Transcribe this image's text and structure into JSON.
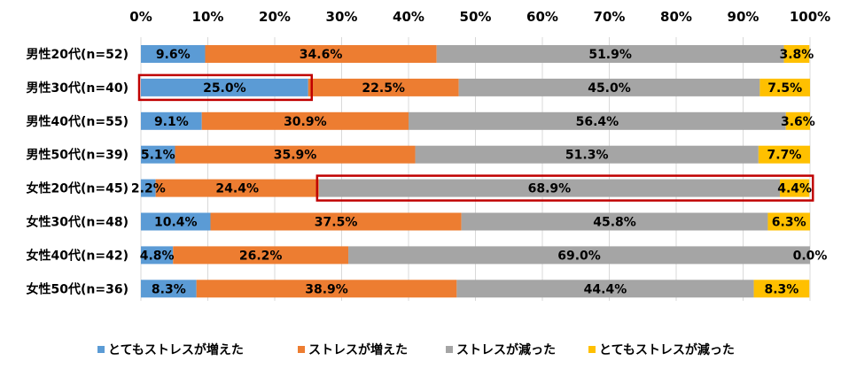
{
  "chart_data": {
    "type": "bar",
    "orientation": "horizontal",
    "stacked": "percent",
    "xlim": [
      0,
      100
    ],
    "x_ticks": [
      "0%",
      "10%",
      "20%",
      "30%",
      "40%",
      "50%",
      "60%",
      "70%",
      "80%",
      "90%",
      "100%"
    ],
    "categories": [
      "男性20代(n=52)",
      "男性30代(n=40)",
      "男性40代(n=55)",
      "男性50代(n=39)",
      "女性20代(n=45)",
      "女性30代(n=48)",
      "女性40代(n=42)",
      "女性50代(n=36)"
    ],
    "series": [
      {
        "name": "とてもストレスが増えた",
        "color": "#5b9bd5",
        "values": [
          9.6,
          25.0,
          9.1,
          5.1,
          2.2,
          10.4,
          4.8,
          8.3
        ],
        "labels": [
          "9.6%",
          "25.0%",
          "9.1%",
          "5.1%",
          "2.2%",
          "10.4%",
          "4.8%",
          "8.3%"
        ]
      },
      {
        "name": "ストレスが増えた",
        "color": "#ed7d31",
        "values": [
          34.6,
          22.5,
          30.9,
          35.9,
          24.4,
          37.5,
          26.2,
          38.9
        ],
        "labels": [
          "34.6%",
          "22.5%",
          "30.9%",
          "35.9%",
          "24.4%",
          "37.5%",
          "26.2%",
          "38.9%"
        ]
      },
      {
        "name": "ストレスが減った",
        "color": "#a5a5a5",
        "values": [
          51.9,
          45.0,
          56.4,
          51.3,
          68.9,
          45.8,
          69.0,
          44.4
        ],
        "labels": [
          "51.9%",
          "45.0%",
          "56.4%",
          "51.3%",
          "68.9%",
          "45.8%",
          "69.0%",
          "44.4%"
        ]
      },
      {
        "name": "とてもストレスが減った",
        "color": "#ffc000",
        "values": [
          3.8,
          7.5,
          3.6,
          7.7,
          4.4,
          6.3,
          0.0,
          8.3
        ],
        "labels": [
          "3.8%",
          "7.5%",
          "3.6%",
          "7.7%",
          "4.4%",
          "6.3%",
          "0.0%",
          "8.3%"
        ]
      }
    ],
    "highlights": [
      {
        "category": "男性30代(n=40)",
        "series": [
          "とてもストレスが増えた"
        ]
      },
      {
        "category": "女性20代(n=45)",
        "series": [
          "ストレスが減った",
          "とてもストレスが減った"
        ]
      }
    ],
    "highlight_color": "#c00000",
    "gridlines": true,
    "legend_position": "bottom"
  }
}
